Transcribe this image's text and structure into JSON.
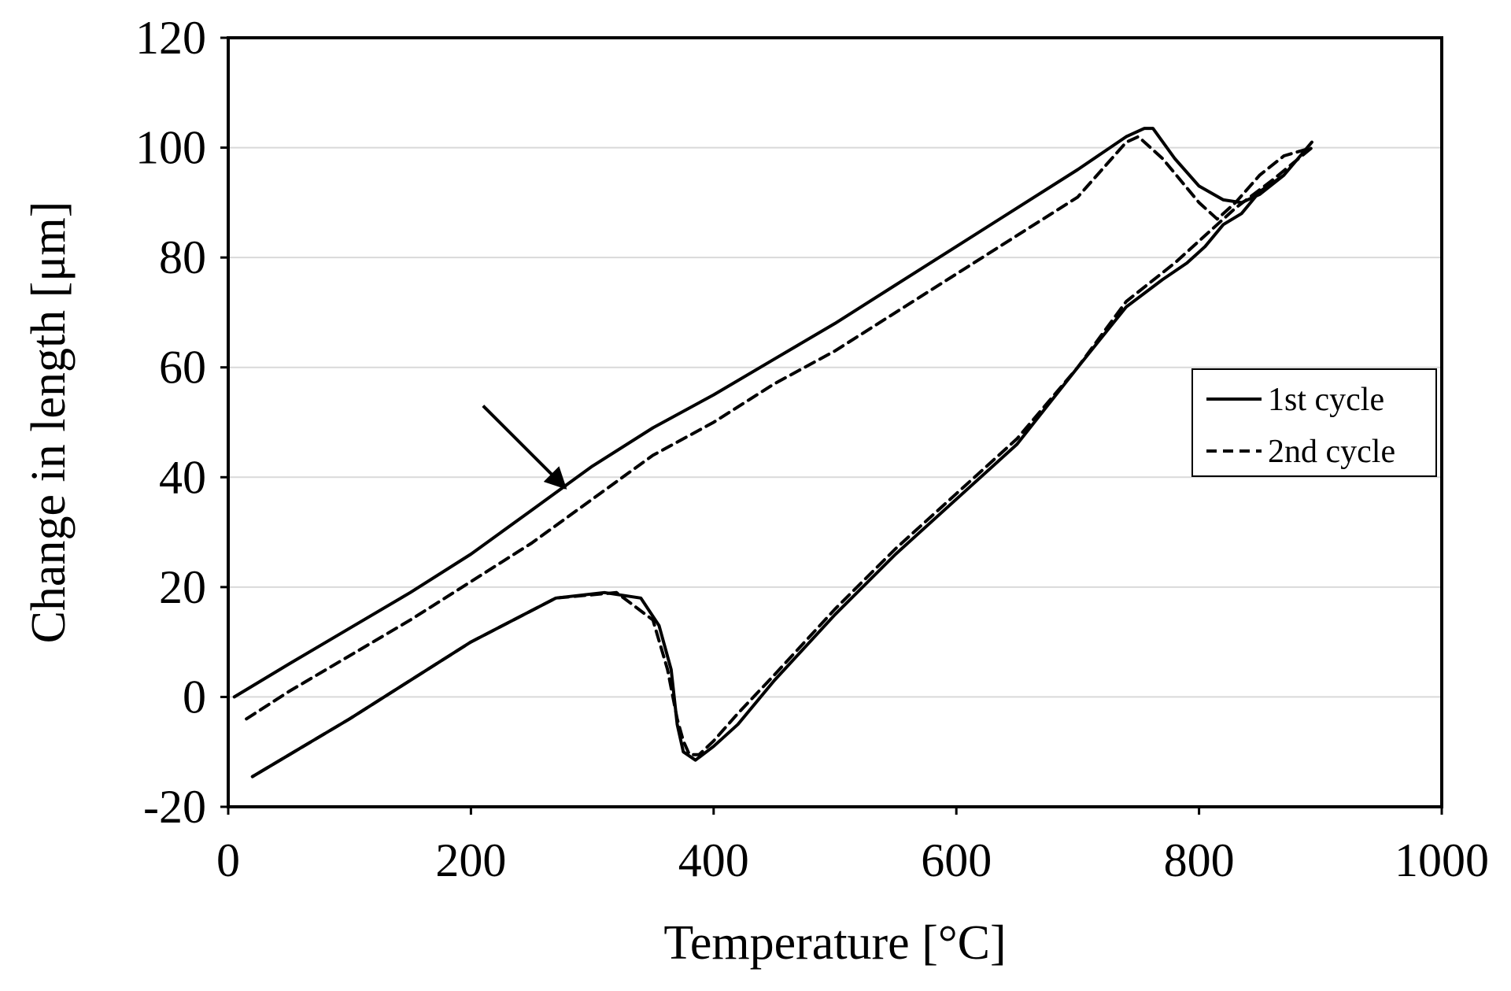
{
  "chart_data": {
    "type": "line",
    "title": "",
    "xlabel": "Temperature [°C]",
    "ylabel": "Change in length [μm]",
    "xlim": [
      0,
      1000
    ],
    "ylim": [
      -20,
      120
    ],
    "xticks": [
      "0",
      "200",
      "400",
      "600",
      "800",
      "1000"
    ],
    "yticks": [
      "-20",
      "0",
      "20",
      "40",
      "60",
      "80",
      "100",
      "120"
    ],
    "grid": "horizontal",
    "legend_position": "right",
    "colors": {
      "line": "#000000",
      "grid": "#d9d9d9",
      "background": "#ffffff"
    },
    "series": [
      {
        "name": "1st cycle",
        "style": "solid",
        "x": [
          5,
          50,
          100,
          150,
          200,
          250,
          300,
          350,
          400,
          450,
          500,
          550,
          600,
          650,
          700,
          740,
          755,
          762,
          780,
          800,
          820,
          835,
          850,
          870,
          893,
          870,
          850,
          835,
          820,
          805,
          790,
          770,
          740,
          700,
          650,
          600,
          550,
          500,
          450,
          420,
          400,
          385,
          375,
          370,
          365,
          355,
          340,
          310,
          270,
          200,
          100,
          20
        ],
        "y": [
          0,
          6,
          12.5,
          19,
          26,
          34,
          42,
          49,
          55,
          61.5,
          68,
          75,
          82,
          89,
          96,
          102,
          103.5,
          103.5,
          98,
          93,
          90.5,
          90,
          91.5,
          95,
          101,
          95,
          92,
          88,
          86,
          82,
          79,
          76,
          71,
          60,
          46,
          36,
          26,
          15,
          3,
          -5,
          -9,
          -11.5,
          -10,
          -5,
          5,
          13,
          18,
          19,
          18,
          10,
          -4,
          -14.5
        ]
      },
      {
        "name": "2nd cycle",
        "style": "dashed",
        "x": [
          15,
          50,
          100,
          150,
          200,
          250,
          300,
          350,
          400,
          450,
          500,
          550,
          600,
          650,
          700,
          740,
          750,
          770,
          800,
          815,
          830,
          850,
          870,
          893,
          860,
          830,
          800,
          780,
          740,
          700,
          650,
          600,
          550,
          500,
          450,
          420,
          400,
          388,
          380,
          375,
          370,
          362,
          350,
          320,
          270,
          200,
          100,
          20
        ],
        "y": [
          -4,
          1,
          7.5,
          14,
          21,
          28,
          36,
          44,
          50,
          57,
          63,
          70,
          77,
          84,
          91,
          101,
          102,
          98,
          90,
          87,
          90,
          95,
          98.5,
          100,
          94,
          89,
          83,
          79,
          72,
          60,
          47,
          37,
          27,
          16,
          4,
          -3,
          -8,
          -10.5,
          -10.5,
          -8,
          -4,
          5,
          14,
          19,
          18,
          10,
          -4,
          -14.5
        ]
      }
    ],
    "annotations": [
      {
        "type": "arrow",
        "from": [
          210,
          53
        ],
        "to": [
          278,
          38
        ]
      }
    ]
  }
}
